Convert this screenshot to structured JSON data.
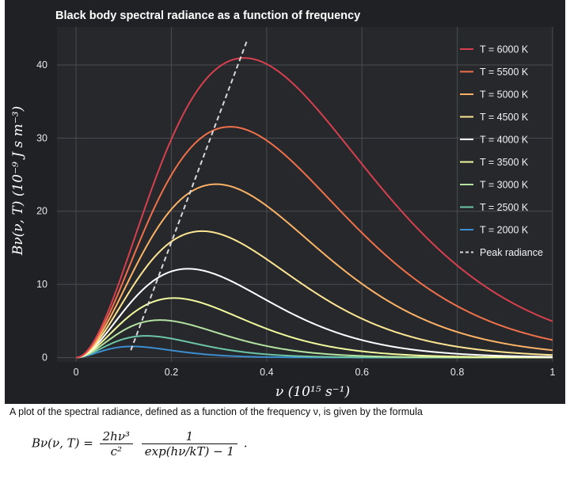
{
  "chart_data": {
    "type": "line",
    "title": "Black body spectral radiance as a function of frequency",
    "xlabel": "ν (10¹⁵ s⁻¹)",
    "ylabel": "Bν(ν, T)   (10⁻⁹ J s m⁻³)",
    "xlim": [
      -0.04,
      1.0
    ],
    "ylim": [
      -0.6,
      45.2
    ],
    "x_ticks": [
      0,
      0.2,
      0.4,
      0.6,
      0.8,
      1
    ],
    "x_tick_labels": [
      "0",
      "0.2",
      "0.4",
      "0.6",
      "0.8",
      "1"
    ],
    "y_ticks": [
      0,
      10,
      20,
      30,
      40
    ],
    "y_tick_labels": [
      "0",
      "10",
      "20",
      "30",
      "40"
    ],
    "grid": true,
    "legend_position": "top-right",
    "background": "#1f2124",
    "series": [
      {
        "name": "T = 6000 K",
        "temperature": 6000,
        "color": "#d6404e",
        "style": "solid"
      },
      {
        "name": "T = 5500 K",
        "temperature": 5500,
        "color": "#f0704a",
        "style": "solid"
      },
      {
        "name": "T = 5000 K",
        "temperature": 5000,
        "color": "#fbb266",
        "style": "solid"
      },
      {
        "name": "T = 4500 K",
        "temperature": 4500,
        "color": "#fde592",
        "style": "solid"
      },
      {
        "name": "T = 4000 K",
        "temperature": 4000,
        "color": "#ffffff",
        "style": "solid"
      },
      {
        "name": "T = 3500 K",
        "temperature": 3500,
        "color": "#f3fa9e",
        "style": "solid"
      },
      {
        "name": "T = 3000 K",
        "temperature": 3000,
        "color": "#b4e2a0",
        "style": "solid"
      },
      {
        "name": "T = 2500 K",
        "temperature": 2500,
        "color": "#6cc5a5",
        "style": "solid"
      },
      {
        "name": "T = 2000 K",
        "temperature": 2000,
        "color": "#3c8ed0",
        "style": "solid"
      },
      {
        "name": "Peak radiance",
        "color": "#d8d8d8",
        "style": "dashed",
        "x": [
          0.115,
          0.358
        ],
        "y": [
          1.0,
          43.2
        ]
      }
    ]
  },
  "caption": {
    "text": "A plot of the spectral radiance, defined as a function of the frequency ν, is given by the formula"
  },
  "formula": {
    "lhs": "Bν(ν, T) =",
    "frac1_num": "2hν³",
    "frac1_den": "c²",
    "frac2_num": "1",
    "frac2_den": "exp(hν/kT) − 1",
    "end": "."
  }
}
